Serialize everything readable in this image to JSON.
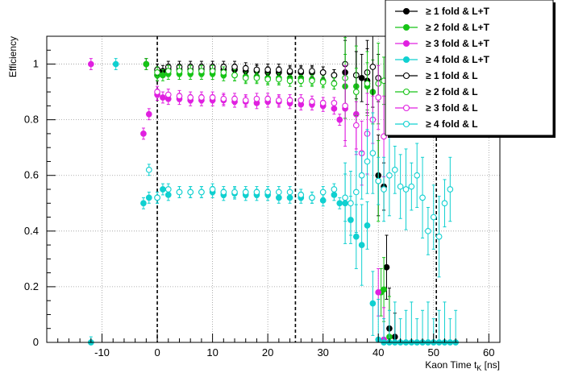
{
  "chart_data": {
    "type": "scatter",
    "title": "",
    "xlabel": "Kaon Time t",
    "xlabel_sub": "K",
    "xlabel_unit": " [ns]",
    "ylabel": "Efficiency",
    "xlim": [
      -20,
      62
    ],
    "ylim": [
      0,
      1.1
    ],
    "xticks": [
      -10,
      0,
      10,
      20,
      30,
      40,
      50,
      60
    ],
    "yticks": [
      0,
      0.2,
      0.4,
      0.6,
      0.8,
      1
    ],
    "grid": true,
    "legend_position": "top-right",
    "vlines": [
      0,
      25,
      50.5
    ],
    "series": [
      {
        "name": "≥ 1 fold & L+T",
        "color": "#000000",
        "filled": true,
        "points": [
          [
            -2,
            1.0
          ],
          [
            0,
            0.96
          ],
          [
            1,
            0.975
          ],
          [
            2,
            0.98
          ],
          [
            4,
            0.98
          ],
          [
            6,
            0.98
          ],
          [
            8,
            0.98
          ],
          [
            10,
            0.98
          ],
          [
            12,
            0.98
          ],
          [
            14,
            0.98
          ],
          [
            16,
            0.975
          ],
          [
            18,
            0.975
          ],
          [
            20,
            0.97
          ],
          [
            22,
            0.97
          ],
          [
            24,
            0.97
          ],
          [
            26,
            0.97
          ],
          [
            28,
            0.97
          ],
          [
            30,
            0.97
          ],
          [
            32,
            0.96
          ],
          [
            34,
            0.97
          ],
          [
            36,
            0.96
          ],
          [
            37,
            0.95
          ],
          [
            38,
            0.94
          ],
          [
            40,
            0.6
          ],
          [
            41,
            0.56
          ],
          [
            41.5,
            0.27
          ],
          [
            42,
            0.05
          ],
          [
            43,
            0.02
          ]
        ]
      },
      {
        "name": "≥ 2 fold & L+T",
        "color": "#16c416",
        "filled": true,
        "points": [
          [
            -2,
            1.0
          ],
          [
            0,
            0.96
          ],
          [
            1,
            0.96
          ],
          [
            2,
            0.965
          ],
          [
            4,
            0.965
          ],
          [
            6,
            0.965
          ],
          [
            8,
            0.965
          ],
          [
            10,
            0.965
          ],
          [
            12,
            0.96
          ],
          [
            14,
            0.96
          ],
          [
            16,
            0.955
          ],
          [
            18,
            0.955
          ],
          [
            20,
            0.95
          ],
          [
            22,
            0.95
          ],
          [
            24,
            0.95
          ],
          [
            26,
            0.95
          ],
          [
            28,
            0.945
          ],
          [
            30,
            0.94
          ],
          [
            32,
            0.93
          ],
          [
            34,
            0.92
          ],
          [
            36,
            0.92
          ],
          [
            38,
            0.92
          ],
          [
            39,
            0.9
          ],
          [
            40,
            0.58
          ],
          [
            40.5,
            0.18
          ],
          [
            41,
            0.19
          ],
          [
            42,
            0.02
          ]
        ]
      },
      {
        "name": "≥ 3 fold & L+T",
        "color": "#e020e0",
        "filled": true,
        "points": [
          [
            -12,
            1.0
          ],
          [
            -2.5,
            0.75
          ],
          [
            -1.5,
            0.82
          ],
          [
            0,
            0.89
          ],
          [
            1,
            0.88
          ],
          [
            2,
            0.875
          ],
          [
            4,
            0.875
          ],
          [
            6,
            0.87
          ],
          [
            8,
            0.87
          ],
          [
            10,
            0.87
          ],
          [
            12,
            0.87
          ],
          [
            14,
            0.865
          ],
          [
            16,
            0.865
          ],
          [
            18,
            0.86
          ],
          [
            20,
            0.865
          ],
          [
            22,
            0.865
          ],
          [
            24,
            0.86
          ],
          [
            26,
            0.855
          ],
          [
            28,
            0.855
          ],
          [
            30,
            0.85
          ],
          [
            32,
            0.84
          ],
          [
            33,
            0.8
          ],
          [
            34,
            0.84
          ],
          [
            36,
            0.82
          ],
          [
            40,
            0.18
          ],
          [
            41,
            0.01
          ]
        ]
      },
      {
        "name": "≥ 4 fold & L+T",
        "color": "#10d0d0",
        "filled": true,
        "points": [
          [
            -7.5,
            1.0
          ],
          [
            -12,
            0.0
          ],
          [
            -2.5,
            0.5
          ],
          [
            -1.5,
            0.52
          ],
          [
            0,
            0.52
          ],
          [
            1,
            0.55
          ],
          [
            2,
            0.53
          ],
          [
            4,
            0.54
          ],
          [
            6,
            0.54
          ],
          [
            8,
            0.54
          ],
          [
            10,
            0.54
          ],
          [
            12,
            0.53
          ],
          [
            14,
            0.535
          ],
          [
            16,
            0.53
          ],
          [
            18,
            0.53
          ],
          [
            20,
            0.53
          ],
          [
            22,
            0.52
          ],
          [
            24,
            0.52
          ],
          [
            26,
            0.52
          ],
          [
            28,
            0.52
          ],
          [
            30,
            0.51
          ],
          [
            32,
            0.53
          ],
          [
            33,
            0.5
          ],
          [
            34,
            0.5
          ],
          [
            35,
            0.44
          ],
          [
            36,
            0.38
          ],
          [
            37,
            0.35
          ],
          [
            38,
            0.42
          ],
          [
            39,
            0.14
          ],
          [
            40,
            0.01
          ]
        ]
      },
      {
        "name": "≥ 1 fold & L",
        "color": "#000000",
        "filled": false,
        "points": [
          [
            0,
            0.98
          ],
          [
            2,
            0.99
          ],
          [
            4,
            0.99
          ],
          [
            6,
            0.99
          ],
          [
            8,
            0.99
          ],
          [
            10,
            0.99
          ],
          [
            12,
            0.99
          ],
          [
            14,
            0.99
          ],
          [
            16,
            0.985
          ],
          [
            18,
            0.98
          ],
          [
            20,
            0.98
          ],
          [
            22,
            0.98
          ],
          [
            24,
            0.975
          ],
          [
            26,
            0.975
          ],
          [
            28,
            0.975
          ],
          [
            30,
            0.97
          ],
          [
            32,
            0.96
          ],
          [
            34,
            1.0
          ],
          [
            36,
            0.96
          ],
          [
            38,
            0.97
          ],
          [
            39,
            0.99
          ],
          [
            40,
            0.95
          ]
        ]
      },
      {
        "name": "≥ 2 fold & L",
        "color": "#16c416",
        "filled": false,
        "points": [
          [
            0,
            0.97
          ],
          [
            2,
            0.975
          ],
          [
            4,
            0.975
          ],
          [
            6,
            0.975
          ],
          [
            8,
            0.975
          ],
          [
            10,
            0.975
          ],
          [
            12,
            0.97
          ],
          [
            14,
            0.96
          ],
          [
            16,
            0.95
          ],
          [
            18,
            0.95
          ],
          [
            20,
            0.945
          ],
          [
            22,
            0.945
          ],
          [
            24,
            0.94
          ],
          [
            26,
            0.94
          ],
          [
            28,
            0.94
          ],
          [
            30,
            0.935
          ],
          [
            32,
            0.93
          ],
          [
            34,
            0.95
          ],
          [
            36,
            0.9
          ],
          [
            38,
            0.93
          ],
          [
            40,
            0.93
          ],
          [
            41,
            0.94
          ]
        ]
      },
      {
        "name": "≥ 3 fold & L",
        "color": "#e020e0",
        "filled": false,
        "points": [
          [
            0,
            0.9
          ],
          [
            2,
            0.89
          ],
          [
            4,
            0.885
          ],
          [
            6,
            0.88
          ],
          [
            8,
            0.88
          ],
          [
            10,
            0.88
          ],
          [
            12,
            0.875
          ],
          [
            14,
            0.875
          ],
          [
            16,
            0.87
          ],
          [
            18,
            0.875
          ],
          [
            20,
            0.875
          ],
          [
            22,
            0.87
          ],
          [
            24,
            0.87
          ],
          [
            26,
            0.87
          ],
          [
            28,
            0.865
          ],
          [
            30,
            0.86
          ],
          [
            32,
            0.86
          ],
          [
            34,
            0.85
          ],
          [
            36,
            0.78
          ],
          [
            37,
            0.68
          ],
          [
            38,
            0.75
          ],
          [
            39,
            0.8
          ],
          [
            40,
            0.88
          ],
          [
            41,
            0.74
          ]
        ]
      },
      {
        "name": "≥ 4 fold & L",
        "color": "#10d0d0",
        "filled": false,
        "points": [
          [
            -1.5,
            0.62
          ],
          [
            0,
            0.52
          ],
          [
            2,
            0.55
          ],
          [
            4,
            0.54
          ],
          [
            6,
            0.54
          ],
          [
            8,
            0.54
          ],
          [
            10,
            0.55
          ],
          [
            12,
            0.54
          ],
          [
            14,
            0.54
          ],
          [
            16,
            0.54
          ],
          [
            18,
            0.54
          ],
          [
            20,
            0.54
          ],
          [
            22,
            0.54
          ],
          [
            24,
            0.54
          ],
          [
            26,
            0.53
          ],
          [
            28,
            0.52
          ],
          [
            30,
            0.54
          ],
          [
            32,
            0.55
          ],
          [
            34,
            0.52
          ],
          [
            35,
            0.5
          ],
          [
            36,
            0.54
          ],
          [
            37,
            0.6
          ],
          [
            38,
            0.65
          ],
          [
            39,
            0.68
          ],
          [
            40,
            0.58
          ],
          [
            41,
            0.55
          ],
          [
            42,
            0.6
          ],
          [
            43,
            0.62
          ],
          [
            44,
            0.56
          ],
          [
            45,
            0.55
          ],
          [
            46,
            0.56
          ],
          [
            47,
            0.6
          ],
          [
            48,
            0.52
          ],
          [
            49,
            0.4
          ],
          [
            50,
            0.45
          ],
          [
            51,
            0.38
          ],
          [
            52,
            0.5
          ],
          [
            53,
            0.55
          ]
        ]
      },
      {
        "name": "",
        "color": "#10d0d0",
        "filled": true,
        "points": [
          [
            41,
            0.0
          ],
          [
            42,
            0.0
          ],
          [
            43,
            0.0
          ],
          [
            44,
            0.0
          ],
          [
            45,
            0.0
          ],
          [
            46,
            0.0
          ],
          [
            47,
            0.0
          ],
          [
            48,
            0.0
          ],
          [
            49,
            0.0
          ],
          [
            50,
            0.0
          ],
          [
            51,
            0.0
          ],
          [
            52,
            0.0
          ],
          [
            53,
            0.0
          ],
          [
            54,
            0.0
          ]
        ]
      }
    ]
  }
}
